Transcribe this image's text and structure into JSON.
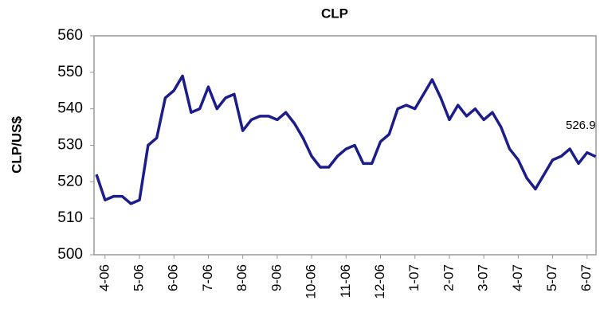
{
  "chart_data": {
    "type": "line",
    "title": "CLP",
    "y_label": "CLP/US$",
    "annotation": "526.9",
    "x": [
      -0.25,
      0,
      0.25,
      0.5,
      0.75,
      1,
      1.25,
      1.5,
      1.75,
      2,
      2.25,
      2.5,
      2.75,
      3,
      3.25,
      3.5,
      3.75,
      4,
      4.25,
      4.5,
      4.75,
      5,
      5.25,
      5.5,
      5.75,
      6,
      6.25,
      6.5,
      6.75,
      7,
      7.25,
      7.5,
      7.75,
      8,
      8.25,
      8.5,
      8.75,
      9,
      9.25,
      9.5,
      9.75,
      10,
      10.25,
      10.5,
      10.75,
      11,
      11.25,
      11.5,
      11.75,
      12,
      12.25,
      12.5,
      12.75,
      13,
      13.25,
      13.5,
      13.75,
      14,
      14.25
    ],
    "series": [
      {
        "name": "CLP",
        "color": "#1c1c8a",
        "values": [
          522,
          515,
          516,
          516,
          514,
          515,
          530,
          532,
          543,
          545,
          549,
          539,
          540,
          546,
          540,
          543,
          544,
          534,
          537,
          538,
          538,
          537,
          539,
          536,
          532,
          527,
          524,
          524,
          527,
          529,
          530,
          525,
          525,
          531,
          533,
          540,
          541,
          540,
          544,
          548,
          543,
          537,
          541,
          538,
          540,
          537,
          539,
          535,
          529,
          526,
          521,
          518,
          522,
          526,
          527,
          529,
          525,
          528,
          526.9
        ]
      }
    ],
    "xlim": [
      -0.32,
      14.26
    ],
    "xticks": [
      {
        "value": 0,
        "label": "4-06"
      },
      {
        "value": 1,
        "label": "5-06"
      },
      {
        "value": 2,
        "label": "6-06"
      },
      {
        "value": 3,
        "label": "7-06"
      },
      {
        "value": 4,
        "label": "8-06"
      },
      {
        "value": 5,
        "label": "9-06"
      },
      {
        "value": 6,
        "label": "10-06"
      },
      {
        "value": 7,
        "label": "11-06"
      },
      {
        "value": 8,
        "label": "12-06"
      },
      {
        "value": 9,
        "label": "1-07"
      },
      {
        "value": 10,
        "label": "2-07"
      },
      {
        "value": 11,
        "label": "3-07"
      },
      {
        "value": 12,
        "label": "4-07"
      },
      {
        "value": 13,
        "label": "5-07"
      },
      {
        "value": 14,
        "label": "6-07"
      }
    ],
    "ylim": [
      500,
      560
    ],
    "yticks": [
      500,
      510,
      520,
      530,
      540,
      550,
      560
    ],
    "grid": false
  }
}
